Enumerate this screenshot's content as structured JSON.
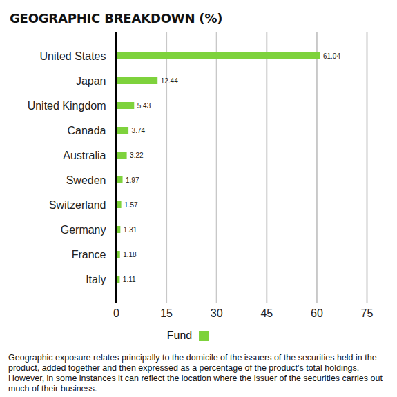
{
  "chart_data": {
    "type": "bar",
    "title": "GEOGRAPHIC BREAKDOWN (%)",
    "orientation": "horizontal",
    "categories": [
      "United States",
      "Japan",
      "United Kingdom",
      "Canada",
      "Australia",
      "Sweden",
      "Switzerland",
      "Germany",
      "France",
      "Italy"
    ],
    "series": [
      {
        "name": "Fund",
        "color": "#7ed23c",
        "values": [
          61.04,
          12.44,
          5.43,
          3.74,
          3.22,
          1.97,
          1.57,
          1.31,
          1.18,
          1.11
        ]
      }
    ],
    "xlim": [
      0,
      75
    ],
    "xticks": [
      0,
      15,
      30,
      45,
      60,
      75
    ],
    "grid": true,
    "data_labels": true,
    "legend": "bottom",
    "caption": "Geographic exposure relates principally to the domicile of the issuers of the securities held in the product, added together and then expressed as a percentage of the product's total holdings. However, in some instances it can reflect the location where the issuer of the securities carries out much of their business."
  }
}
